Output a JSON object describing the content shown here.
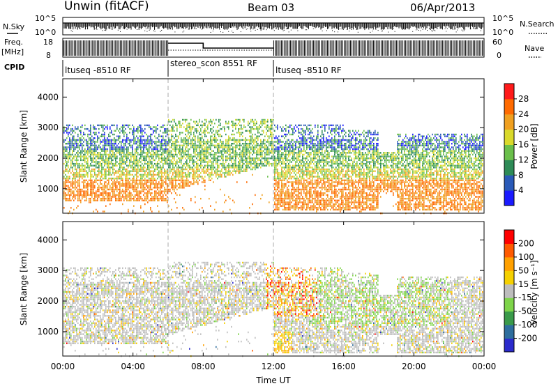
{
  "header": {
    "station": "Unwin (fitACF)",
    "beam": "Beam 03",
    "date": "06/Apr/2013"
  },
  "aux_panels": {
    "nsky_label": "N.Sky",
    "nsearch_label": "N.Search",
    "freq_label_top": "Freq.",
    "freq_label_unit": "[MHz]",
    "nave_label": "Nave",
    "cpid_label": "CPID",
    "nsky_ticks": [
      "10^5",
      "10^0"
    ],
    "nsearch_ticks": [
      "10^5",
      "10^0"
    ],
    "freq_ticks": [
      "18",
      "8"
    ],
    "nave_ticks": [
      "60",
      "0"
    ],
    "cpid_segments": [
      {
        "label": "ltuseq -8510 RF",
        "start": 0,
        "end": 6
      },
      {
        "label": "stereo_scon 8551 RF",
        "start": 6,
        "end": 12
      },
      {
        "label": "ltuseq -8510 RF",
        "start": 12,
        "end": 24
      }
    ]
  },
  "chart_data": [
    {
      "type": "heatmap",
      "name": "power-panel",
      "ylabel": "Slant Range [km]",
      "xlabel": "Time UT",
      "xlim": [
        0,
        24
      ],
      "ylim": [
        200,
        4600
      ],
      "yticks": [
        "1000",
        "2000",
        "3000",
        "4000"
      ],
      "colorbar": {
        "label": "Power [dB]",
        "ticks": [
          "4",
          "8",
          "12",
          "16",
          "20",
          "24",
          "28"
        ],
        "colors": [
          "#1a1aff",
          "#2a5ab8",
          "#2e8b57",
          "#6abf4b",
          "#d9d92b",
          "#f0a020",
          "#ff6a00",
          "#ff1a1a"
        ]
      }
    },
    {
      "type": "heatmap",
      "name": "velocity-panel",
      "ylabel": "Slant Range [km]",
      "xlabel": "Time UT",
      "xlim": [
        0,
        24
      ],
      "ylim": [
        200,
        4600
      ],
      "yticks": [
        "1000",
        "2000",
        "3000",
        "4000"
      ],
      "colorbar": {
        "label": "Velocity [m s⁻¹]",
        "ticks": [
          "200",
          "100",
          "50",
          "15",
          "-15",
          "-50",
          "-100",
          "-200"
        ],
        "colors": [
          "#2b2bcc",
          "#2e6e9e",
          "#3a9a4a",
          "#7ed44a",
          "#bdbdbd",
          "#f5d000",
          "#ffa000",
          "#ff5a00",
          "#ff0000"
        ]
      }
    }
  ],
  "xaxis": {
    "ticks": [
      "00:00",
      "04:00",
      "08:00",
      "12:00",
      "16:00",
      "20:00",
      "00:00"
    ],
    "label": "Time UT"
  }
}
